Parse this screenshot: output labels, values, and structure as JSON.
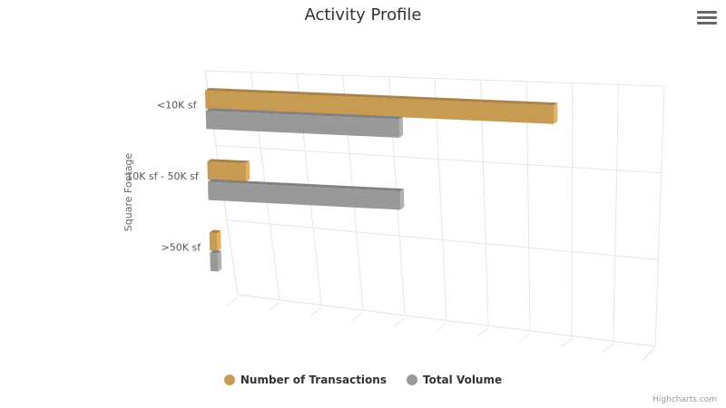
{
  "header": {
    "title": "Activity Profile"
  },
  "menu": {
    "icon": "hamburger-menu-icon"
  },
  "credits": {
    "text": "Highcharts.com"
  },
  "chart_data": {
    "type": "bar",
    "title": "Activity Profile",
    "xlabel": "Square Footage",
    "ylabel": "",
    "categories": [
      "<10K sf",
      "10K sf - 50K sf",
      ">50K sf"
    ],
    "series": [
      {
        "name": "Number of Transactions",
        "color": "#c89b53",
        "values": [
          9,
          1,
          0.2
        ]
      },
      {
        "name": "Total Volume",
        "color": "#999999",
        "values": [
          5,
          5,
          0.2
        ]
      }
    ],
    "ylim": [
      0,
      10
    ],
    "grid": true,
    "legend_position": "bottom-center"
  }
}
